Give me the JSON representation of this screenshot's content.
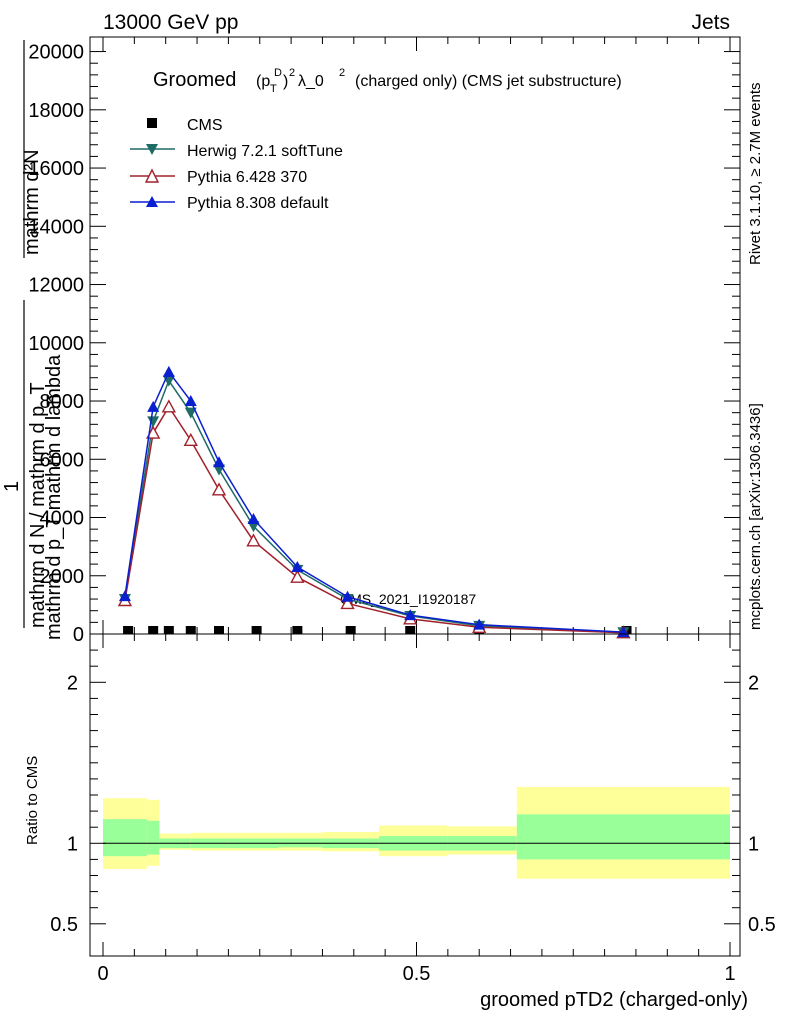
{
  "header": {
    "energy": "13000 GeV pp",
    "process": "Jets",
    "right_top": "Rivet 3.1.10, ≥ 2.7M events",
    "right_bottom": "mcplots.cern.ch [arXiv:1306.3436]",
    "watermark": "CMS_2021_I1920187"
  },
  "colors": {
    "cms": "#000000",
    "herwig": "#1f6b66",
    "pythia6": "#a1212b",
    "pythia8": "#0a1fd0",
    "band_inner": "#99ff99",
    "band_outer": "#ffff99"
  },
  "chart_data": [
    {
      "type": "line",
      "title": "Groomed (p_T^D)^2 λ_0^2  (charged only) (CMS jet substructure)",
      "title_main": "Groomed",
      "title_sym_p": "(p",
      "title_sym_D": "D",
      "title_sym_T": "T",
      "title_sym_close": ")",
      "title_sym_2": "2",
      "title_sym_lambda": "λ_0",
      "title_sym_2b": "2",
      "title_rest": "(charged only) (CMS jet substructure)",
      "ylabel_top": "mathrm d²N",
      "ylabel_mid": "mathrm d p_T mathrm d lambda",
      "ylabel_frac_num": "1",
      "ylabel_frac_den": "mathrm d N / mathrm d p_T",
      "xlim": [
        0,
        1
      ],
      "ylim": [
        0,
        20500
      ],
      "yticks": [
        0,
        2000,
        4000,
        6000,
        8000,
        10000,
        12000,
        14000,
        16000,
        18000,
        20000
      ],
      "ytick_labels": [
        "0",
        "2000",
        "4000",
        "6000",
        "8000",
        "10000",
        "12000",
        "14000",
        "16000",
        "18000",
        "20000"
      ],
      "legend": [
        "CMS",
        "Herwig 7.2.1 softTune",
        "Pythia 6.428 370",
        "Pythia 8.308 default"
      ],
      "series": [
        {
          "name": "CMS",
          "x": [
            0.04,
            0.08,
            0.105,
            0.14,
            0.185,
            0.245,
            0.31,
            0.395,
            0.49,
            0.6,
            0.835
          ],
          "values": [
            0,
            0,
            0,
            0,
            0,
            0,
            0,
            0,
            0,
            0,
            0
          ]
        },
        {
          "name": "Herwig 7.2.1 softTune",
          "x": [
            0.035,
            0.08,
            0.105,
            0.14,
            0.185,
            0.24,
            0.31,
            0.39,
            0.49,
            0.6,
            0.83
          ],
          "values": [
            1200,
            7300,
            8700,
            7600,
            5650,
            3700,
            2200,
            1200,
            620,
            280,
            60
          ]
        },
        {
          "name": "Pythia 6.428 370",
          "x": [
            0.035,
            0.08,
            0.105,
            0.14,
            0.185,
            0.24,
            0.31,
            0.39,
            0.49,
            0.6,
            0.83
          ],
          "values": [
            1150,
            6900,
            7800,
            6650,
            4950,
            3200,
            1950,
            1050,
            520,
            230,
            45
          ]
        },
        {
          "name": "Pythia 8.308 default",
          "x": [
            0.035,
            0.08,
            0.105,
            0.14,
            0.185,
            0.24,
            0.31,
            0.39,
            0.49,
            0.6,
            0.83
          ],
          "values": [
            1300,
            7800,
            9000,
            8000,
            5900,
            3950,
            2300,
            1280,
            650,
            320,
            65
          ]
        }
      ]
    },
    {
      "type": "area",
      "ylabel": "Ratio to CMS",
      "xlabel": "groomed pTD2 (charged-only)",
      "xlim": [
        0,
        1
      ],
      "ylim": [
        0.3,
        2.3
      ],
      "xticks": [
        0,
        0.5,
        1
      ],
      "xtick_labels": [
        "0",
        "0.5",
        "1"
      ],
      "yticks": [
        0.5,
        1,
        2
      ],
      "ytick_labels": [
        "0.5",
        "1",
        "2"
      ],
      "reference_line": 1,
      "bins": [
        {
          "x0": 0.0,
          "x1": 0.07,
          "inner": [
            0.92,
            1.15
          ],
          "outer": [
            0.84,
            1.28
          ]
        },
        {
          "x0": 0.07,
          "x1": 0.09,
          "inner": [
            0.93,
            1.14
          ],
          "outer": [
            0.86,
            1.27
          ]
        },
        {
          "x0": 0.09,
          "x1": 0.14,
          "inner": [
            0.97,
            1.03
          ],
          "outer": [
            0.96,
            1.06
          ]
        },
        {
          "x0": 0.14,
          "x1": 0.2,
          "inner": [
            0.97,
            1.03
          ],
          "outer": [
            0.955,
            1.065
          ]
        },
        {
          "x0": 0.2,
          "x1": 0.28,
          "inner": [
            0.97,
            1.03
          ],
          "outer": [
            0.955,
            1.065
          ]
        },
        {
          "x0": 0.28,
          "x1": 0.35,
          "inner": [
            0.975,
            1.03
          ],
          "outer": [
            0.955,
            1.065
          ]
        },
        {
          "x0": 0.35,
          "x1": 0.44,
          "inner": [
            0.97,
            1.03
          ],
          "outer": [
            0.95,
            1.07
          ]
        },
        {
          "x0": 0.44,
          "x1": 0.55,
          "inner": [
            0.955,
            1.045
          ],
          "outer": [
            0.92,
            1.11
          ]
        },
        {
          "x0": 0.55,
          "x1": 0.66,
          "inner": [
            0.955,
            1.045
          ],
          "outer": [
            0.93,
            1.105
          ]
        },
        {
          "x0": 0.66,
          "x1": 1.0,
          "inner": [
            0.9,
            1.18
          ],
          "outer": [
            0.78,
            1.35
          ]
        }
      ]
    }
  ]
}
